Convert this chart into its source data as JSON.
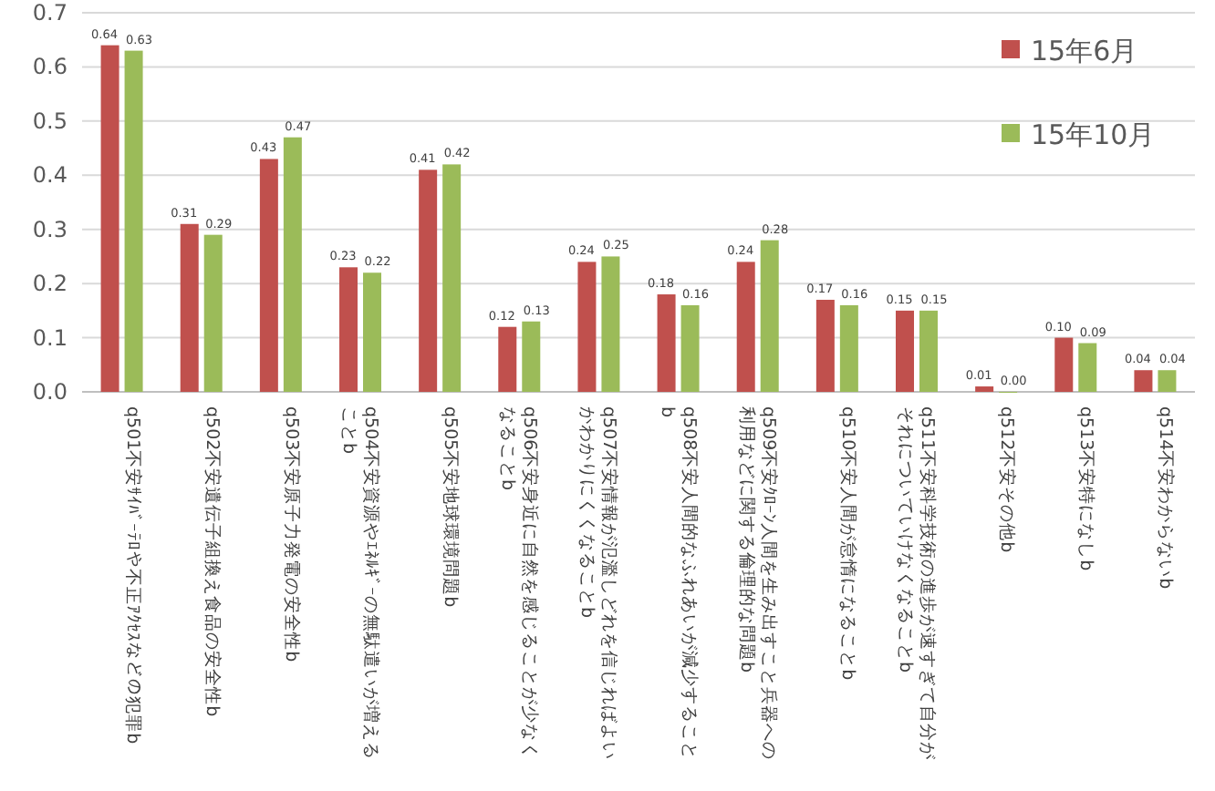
{
  "chart_data": {
    "type": "bar",
    "categories": [
      "q501不安ｻｲﾊﾞｰﾃﾛや不正ｱｸｾｽなどの犯罪b",
      "q502不安遺伝子組換え食品の安全性b",
      "q503不安原子力発電の安全性b",
      "q504不安資源やｴﾈﾙｷﾞｰの無駄遣いが増えることb",
      "q505不安地球環境問題b",
      "q506不安身近に自然を感じることが少なくなることb",
      "q507不安情報が氾濫しどれを信じればよいかわかりにくくなることb",
      "q508不安人間的なふれあいが減少することb",
      "q509不安ｸﾛｰﾝ人間を生み出すこと兵器への利用などに関する倫理的な問題b",
      "q510不安人間が怠惰になることb",
      "q511不安科学技術の進歩が速すぎて自分がそれについていけなくなることb",
      "q512不安その他b",
      "q513不安特になしb",
      "q514不安わからないb"
    ],
    "series": [
      {
        "name": "15年6月",
        "color": "#c0504d",
        "values": [
          0.64,
          0.31,
          0.43,
          0.23,
          0.41,
          0.12,
          0.24,
          0.18,
          0.24,
          0.17,
          0.15,
          0.01,
          0.1,
          0.04
        ],
        "value_labels": [
          "0.64",
          "0.31",
          "0.43",
          "0.23",
          "0.41",
          "0.12",
          "0.24",
          "0.18",
          "0.24",
          "0.17",
          "0.15",
          "0.01",
          "0.10",
          "0.04"
        ]
      },
      {
        "name": "15年10月",
        "color": "#9bbb59",
        "values": [
          0.63,
          0.29,
          0.47,
          0.22,
          0.42,
          0.13,
          0.25,
          0.16,
          0.28,
          0.16,
          0.15,
          0.0,
          0.09,
          0.04
        ],
        "value_labels": [
          "0.63",
          "0.29",
          "0.47",
          "0.22",
          "0.42",
          "0.13",
          "0.25",
          "0.16",
          "0.28",
          "0.16",
          "0.15",
          "0.00",
          "0.09",
          "0.04"
        ]
      }
    ],
    "ylim": [
      0,
      0.7
    ],
    "yticks": [
      {
        "value": 0,
        "label": "0.0"
      },
      {
        "value": 0.1,
        "label": "0.1"
      },
      {
        "value": 0.2,
        "label": "0.2"
      },
      {
        "value": 0.3,
        "label": "0.3"
      },
      {
        "value": 0.4,
        "label": "0.4"
      },
      {
        "value": 0.5,
        "label": "0.5"
      },
      {
        "value": 0.6,
        "label": "0.6"
      },
      {
        "value": 0.7,
        "label": "0.7"
      }
    ],
    "grid": "y",
    "legend": "top right"
  }
}
